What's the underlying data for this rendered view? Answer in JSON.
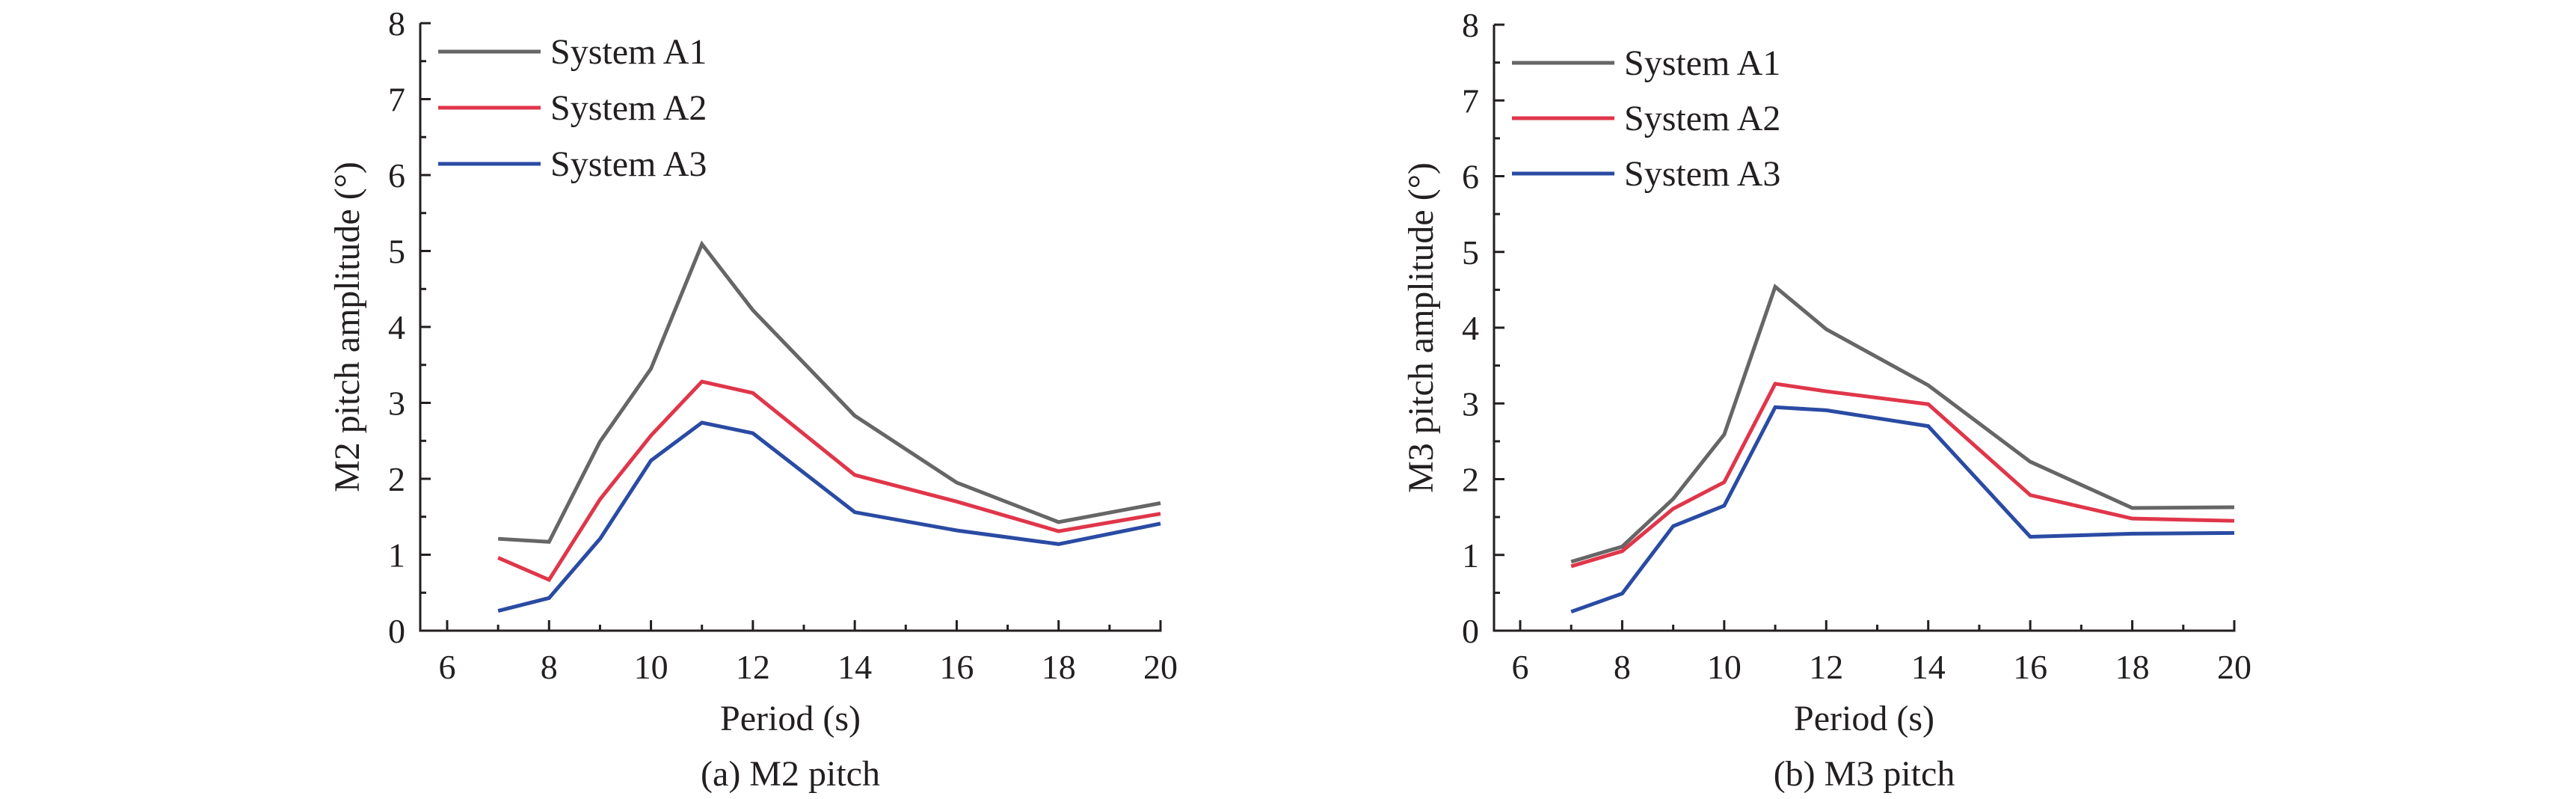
{
  "chart_data": [
    {
      "type": "line",
      "title": "(a) M2 pitch",
      "xlabel": "Period (s)",
      "ylabel": "M2 pitch amplitude (°)",
      "xlim": [
        5.5,
        20
      ],
      "ylim": [
        0,
        8
      ],
      "xticks": [
        6,
        8,
        10,
        12,
        14,
        16,
        18,
        20
      ],
      "yticks": [
        0,
        1,
        2,
        3,
        4,
        5,
        6,
        7,
        8
      ],
      "grid": false,
      "legend_position": "top-left",
      "x": [
        7,
        8,
        9,
        10,
        11,
        12,
        14,
        16,
        18,
        20
      ],
      "series": [
        {
          "name": "System A1",
          "color": "#666666",
          "values": [
            1.21,
            1.17,
            2.49,
            3.45,
            5.09,
            4.22,
            2.83,
            1.95,
            1.43,
            1.68
          ]
        },
        {
          "name": "System A2",
          "color": "#e0364a",
          "values": [
            0.96,
            0.67,
            1.73,
            2.57,
            3.28,
            3.13,
            2.05,
            1.7,
            1.31,
            1.54
          ]
        },
        {
          "name": "System A3",
          "color": "#2a4ba3",
          "values": [
            0.26,
            0.43,
            1.21,
            2.24,
            2.74,
            2.6,
            1.56,
            1.32,
            1.14,
            1.41
          ]
        }
      ]
    },
    {
      "type": "line",
      "title": "(b) M3 pitch",
      "xlabel": "Period (s)",
      "ylabel": "M3 pitch amplitude (°)",
      "xlim": [
        5.5,
        20
      ],
      "ylim": [
        0,
        8
      ],
      "xticks": [
        6,
        8,
        10,
        12,
        14,
        16,
        18,
        20
      ],
      "yticks": [
        0,
        1,
        2,
        3,
        4,
        5,
        6,
        7,
        8
      ],
      "grid": false,
      "legend_position": "top-left",
      "x": [
        7,
        8,
        9,
        10,
        11,
        12,
        14,
        16,
        18,
        20
      ],
      "series": [
        {
          "name": "System A1",
          "color": "#666666",
          "values": [
            0.91,
            1.11,
            1.74,
            2.59,
            4.54,
            3.98,
            3.24,
            2.23,
            1.62,
            1.63
          ]
        },
        {
          "name": "System A2",
          "color": "#e0364a",
          "values": [
            0.85,
            1.05,
            1.61,
            1.96,
            3.26,
            3.16,
            2.99,
            1.79,
            1.48,
            1.45
          ]
        },
        {
          "name": "System A3",
          "color": "#2a4ba3",
          "values": [
            0.25,
            0.49,
            1.38,
            1.65,
            2.95,
            2.91,
            2.7,
            1.24,
            1.28,
            1.29
          ]
        }
      ]
    }
  ]
}
